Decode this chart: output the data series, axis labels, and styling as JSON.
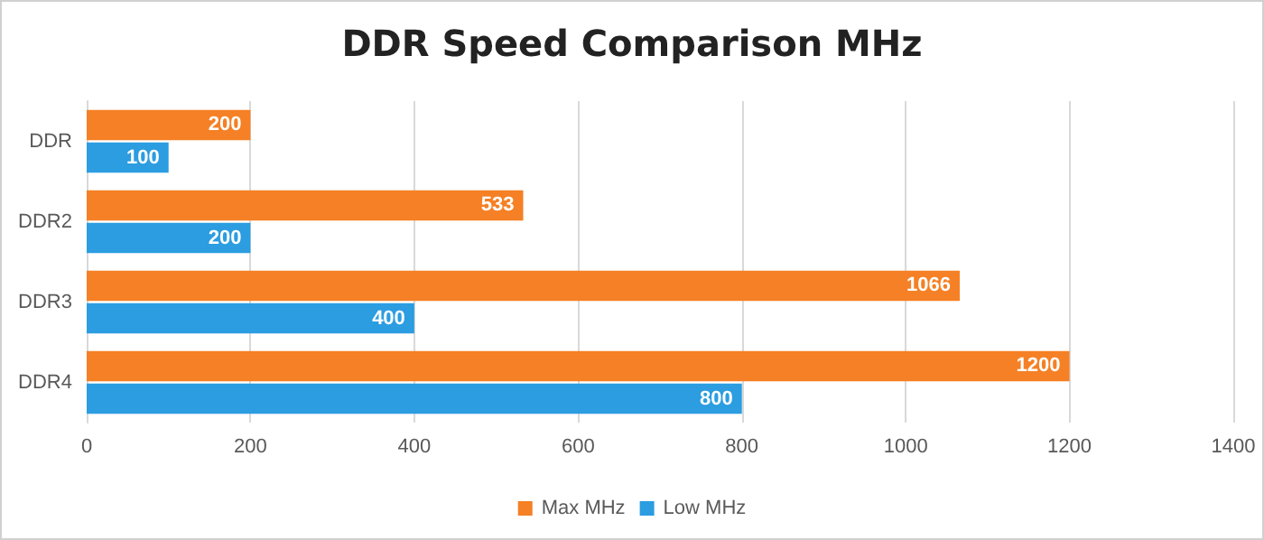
{
  "chart_data": {
    "type": "bar",
    "orientation": "horizontal",
    "title": "DDR Speed Comparison MHz",
    "categories": [
      "DDR",
      "DDR2",
      "DDR3",
      "DDR4"
    ],
    "series": [
      {
        "name": "Max MHz",
        "color": "#f58025",
        "values": [
          200,
          533,
          1066,
          1200
        ]
      },
      {
        "name": "Low MHz",
        "color": "#2b9de0",
        "values": [
          100,
          200,
          400,
          800
        ]
      }
    ],
    "xlim": [
      0,
      1400
    ],
    "xticks": [
      0,
      200,
      400,
      600,
      800,
      1000,
      1200,
      1400
    ],
    "grid": "x",
    "legend": "bottom",
    "data_labels": true
  }
}
